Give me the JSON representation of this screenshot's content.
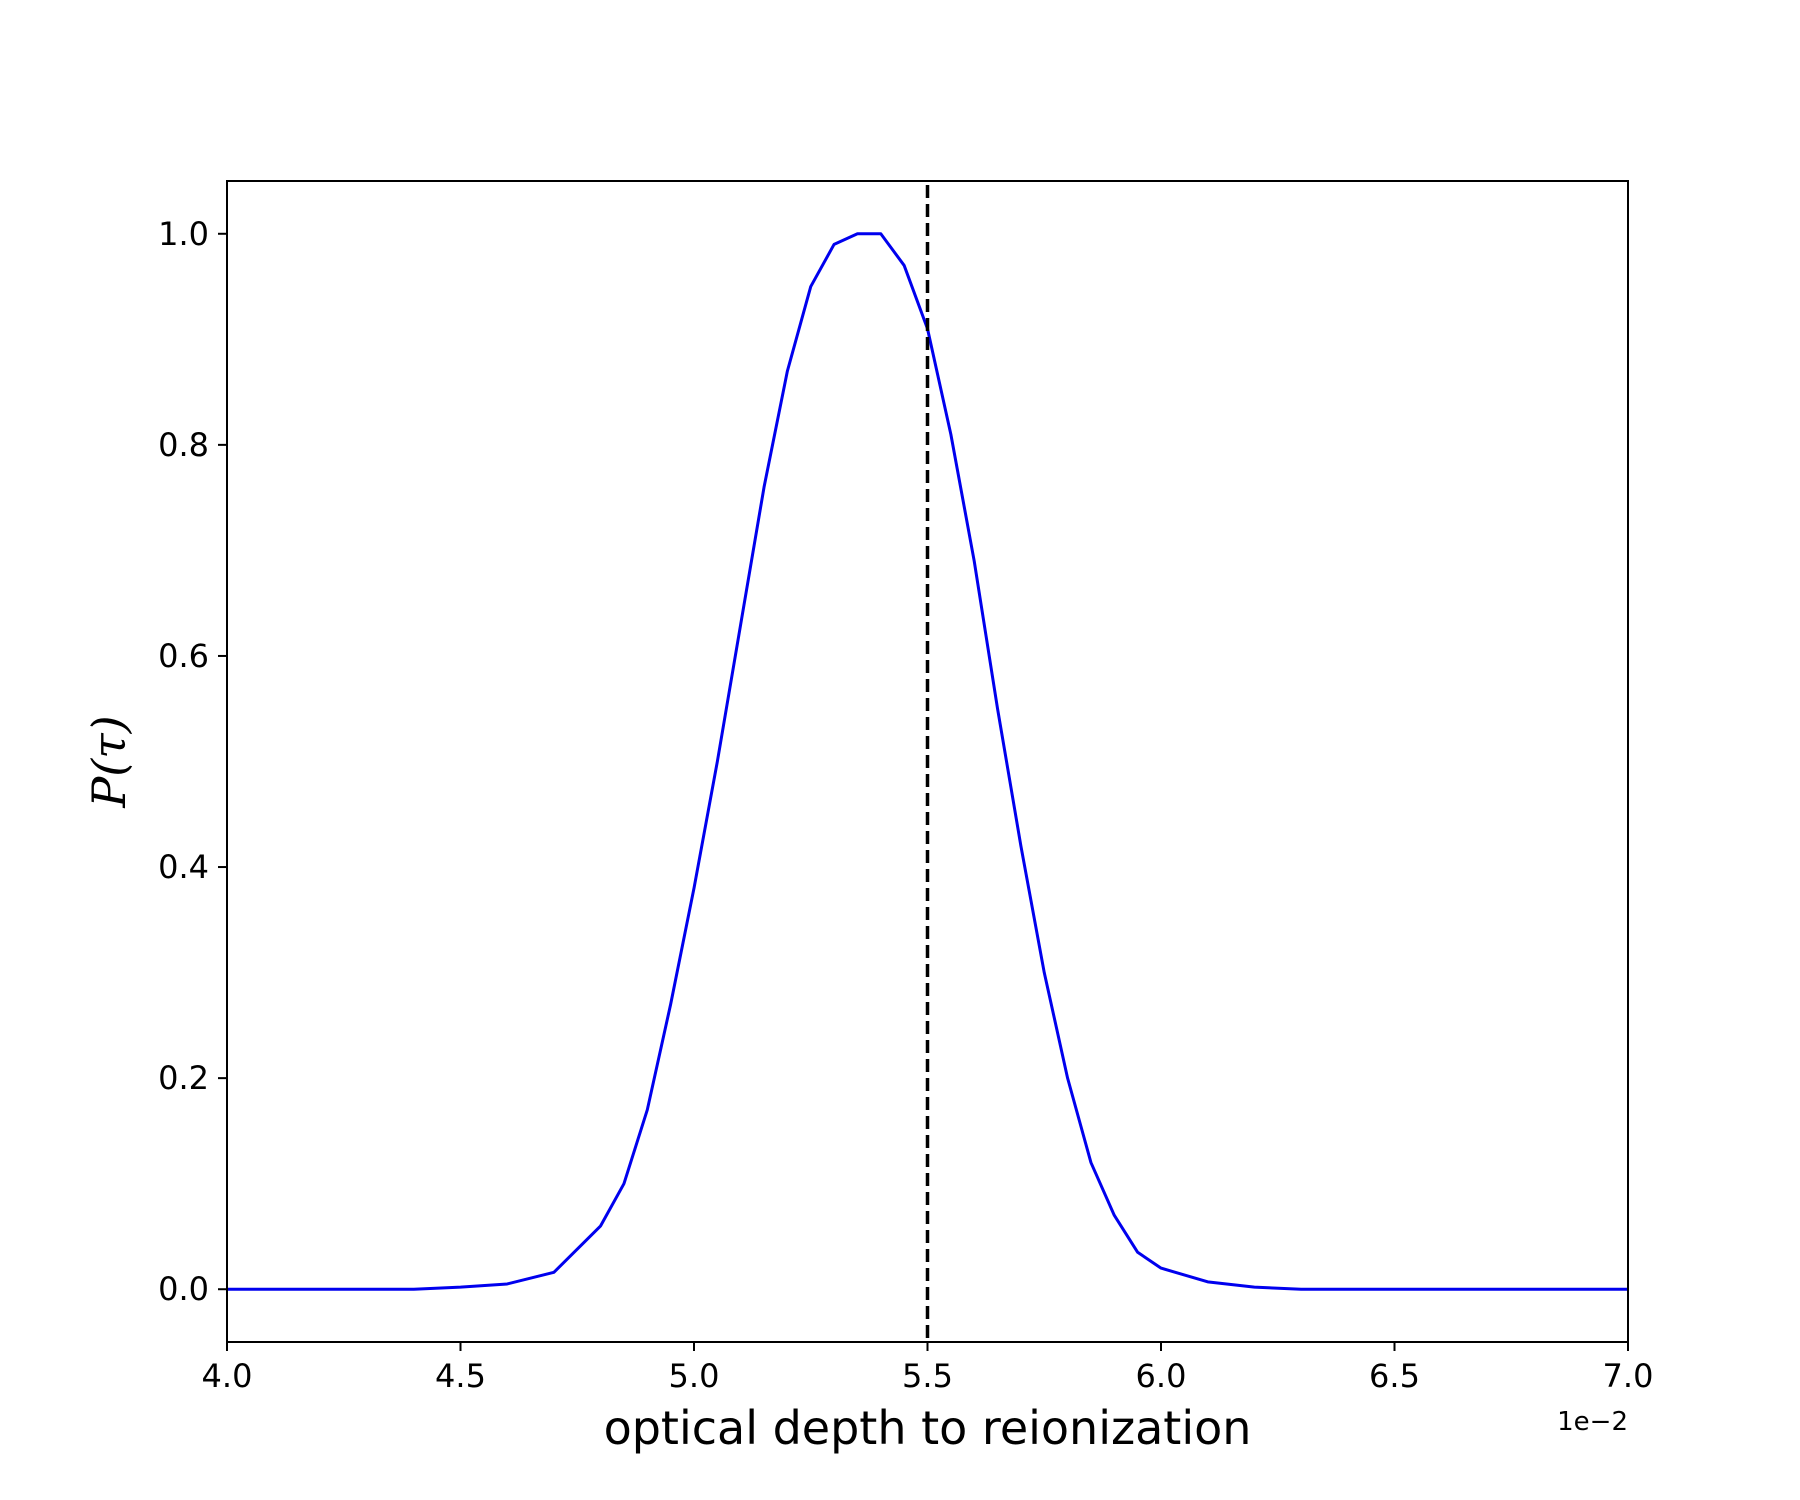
{
  "chart_data": {
    "type": "line",
    "title": "",
    "xlabel": "optical depth to reionization",
    "ylabel": "P(τ)",
    "x_offset_label": "1e−2",
    "xlim": [
      4.0,
      7.0
    ],
    "ylim": [
      -0.05,
      1.05
    ],
    "x_ticks": [
      4.0,
      4.5,
      5.0,
      5.5,
      6.0,
      6.5,
      7.0
    ],
    "x_tick_labels": [
      "4.0",
      "4.5",
      "5.0",
      "5.5",
      "6.0",
      "6.5",
      "7.0"
    ],
    "y_ticks": [
      0.0,
      0.2,
      0.4,
      0.6,
      0.8,
      1.0
    ],
    "y_tick_labels": [
      "0.0",
      "0.2",
      "0.4",
      "0.6",
      "0.8",
      "1.0"
    ],
    "grid": false,
    "series": [
      {
        "color": "#0000ee",
        "style": "solid",
        "x": [
          4.0,
          4.1,
          4.2,
          4.3,
          4.4,
          4.5,
          4.6,
          4.7,
          4.8,
          4.85,
          4.9,
          4.95,
          5.0,
          5.05,
          5.1,
          5.15,
          5.2,
          5.25,
          5.3,
          5.35,
          5.4,
          5.45,
          5.5,
          5.55,
          5.6,
          5.65,
          5.7,
          5.75,
          5.8,
          5.85,
          5.9,
          5.95,
          6.0,
          6.1,
          6.2,
          6.3,
          6.4,
          6.5,
          6.6,
          6.7,
          6.8,
          6.9,
          7.0
        ],
        "y": [
          0.0,
          0.0,
          0.0,
          0.0,
          0.0,
          0.002,
          0.005,
          0.016,
          0.06,
          0.1,
          0.17,
          0.27,
          0.38,
          0.5,
          0.63,
          0.76,
          0.87,
          0.95,
          0.99,
          1.0,
          1.0,
          0.97,
          0.91,
          0.81,
          0.69,
          0.55,
          0.42,
          0.3,
          0.2,
          0.12,
          0.07,
          0.035,
          0.02,
          0.007,
          0.002,
          0.0,
          0.0,
          0.0,
          0.0,
          0.0,
          0.0,
          0.0,
          0.0
        ]
      }
    ],
    "vertical_lines": [
      {
        "x": 5.5,
        "color": "#000000",
        "style": "dashed"
      }
    ]
  }
}
